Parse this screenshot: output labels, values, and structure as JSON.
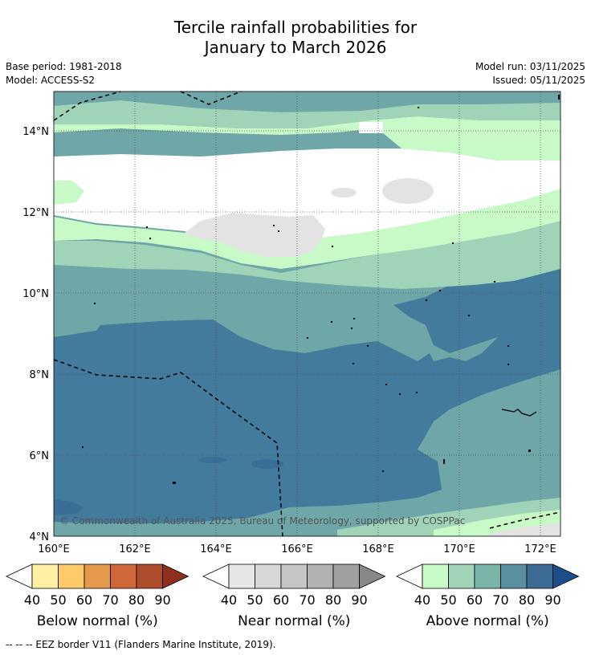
{
  "title_line1": "Tercile rainfall probabilities for",
  "title_line2": "January to March 2026",
  "base_period": "Base period: 1981-2018",
  "model": "Model: ACCESS-S2",
  "model_run": "Model run: 03/11/2025",
  "issued": "Issued: 05/11/2025",
  "copyright": "© Commonwealth of Australia 2025, Bureau of Meteorology, supported by COSPPac",
  "footnote": "--  --  -- EEZ border V11 (Flanders Marine Institute, 2019).",
  "map": {
    "lon_range": [
      160,
      172.5
    ],
    "lat_range": [
      4,
      15
    ],
    "x_ticks": [
      "160°E",
      "162°E",
      "164°E",
      "166°E",
      "168°E",
      "170°E",
      "172°E"
    ],
    "y_ticks": [
      "4°N",
      "6°N",
      "8°N",
      "10°N",
      "12°N",
      "14°N"
    ]
  },
  "colorbars": [
    {
      "label": "Below normal (%)",
      "ticks": [
        "40",
        "50",
        "60",
        "70",
        "80",
        "90"
      ],
      "colors": [
        "#ffffff",
        "#fef0a5",
        "#fdcb6a",
        "#e49a4a",
        "#d0673a",
        "#ae4d2b",
        "#8e2f1f"
      ]
    },
    {
      "label": "Near normal (%)",
      "ticks": [
        "40",
        "50",
        "60",
        "70",
        "80",
        "90"
      ],
      "colors": [
        "#ffffff",
        "#e6e6e6",
        "#d8d8d8",
        "#c5c5c5",
        "#b2b2b2",
        "#9f9f9f",
        "#888888"
      ]
    },
    {
      "label": "Above normal (%)",
      "ticks": [
        "40",
        "50",
        "60",
        "70",
        "80",
        "90"
      ],
      "colors": [
        "#ffffff",
        "#c8fac8",
        "#9fd4b8",
        "#7ab3a8",
        "#5a8fa0",
        "#3c6b93",
        "#1a4f8c"
      ]
    }
  ]
}
